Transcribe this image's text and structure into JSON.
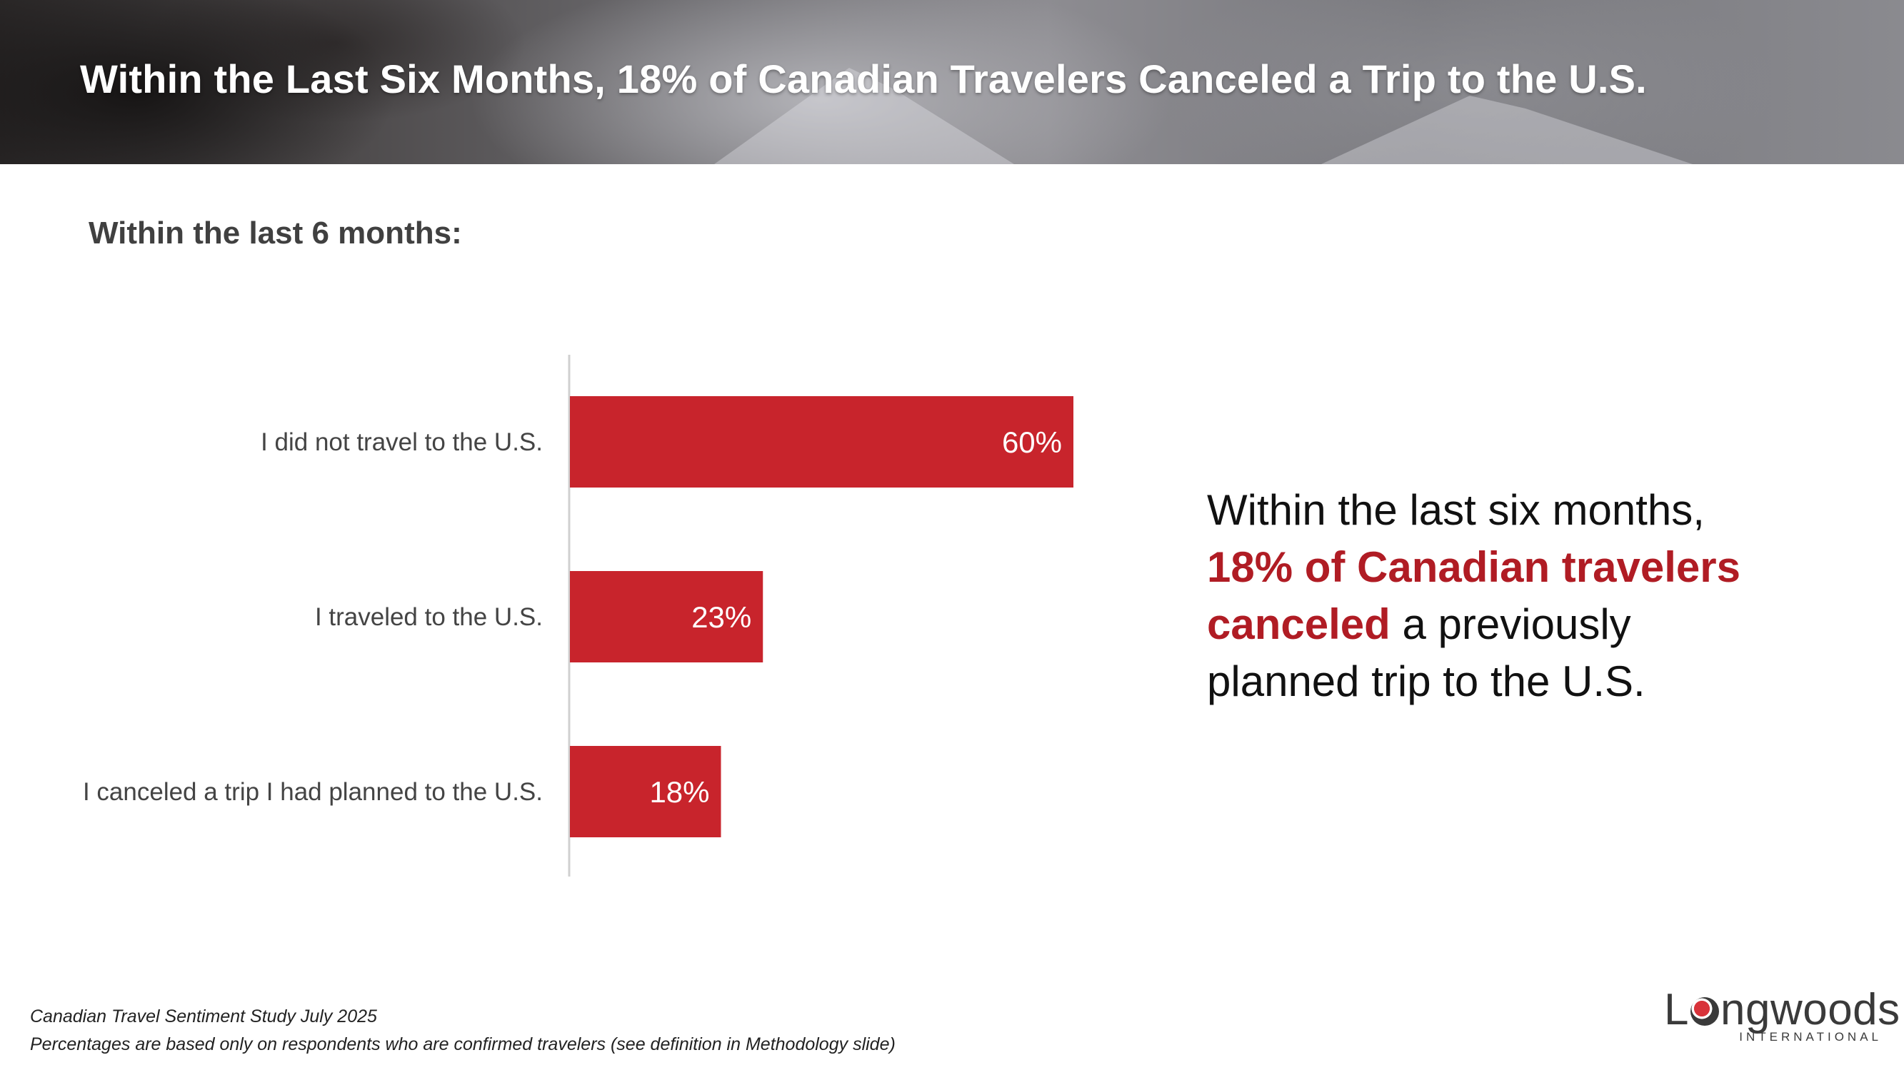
{
  "header": {
    "title": "Within the Last Six Months, 18% of Canadian Travelers Canceled a Trip to the U.S."
  },
  "subtitle": "Within the last 6 months:",
  "chart_data": {
    "type": "bar",
    "orientation": "horizontal",
    "title": "Within the last 6 months:",
    "categories": [
      "I did not travel to the U.S.",
      "I traveled to the U.S.",
      "I canceled a trip I had planned to the U.S."
    ],
    "values": [
      60,
      23,
      18
    ],
    "value_labels": [
      "60%",
      "23%",
      "18%"
    ],
    "unit": "%",
    "xlim": [
      0,
      100
    ],
    "grid": false,
    "bar_color": "#c8242c",
    "label_color": "#ffffff"
  },
  "callout": {
    "line1": "Within the last six months,",
    "highlight1": "18% of Canadian travelers",
    "highlight2": "canceled",
    "rest2": " a previously",
    "line4": "planned trip to the U.S.",
    "highlight_color": "#b01c24"
  },
  "footnotes": {
    "source": "Canadian Travel Sentiment Study July 2025",
    "note": "Percentages are based only on respondents who are confirmed travelers (see definition in Methodology slide)"
  },
  "logo": {
    "word_start": "L",
    "word_end": "ngwoods",
    "sub": "INTERNATIONAL"
  }
}
